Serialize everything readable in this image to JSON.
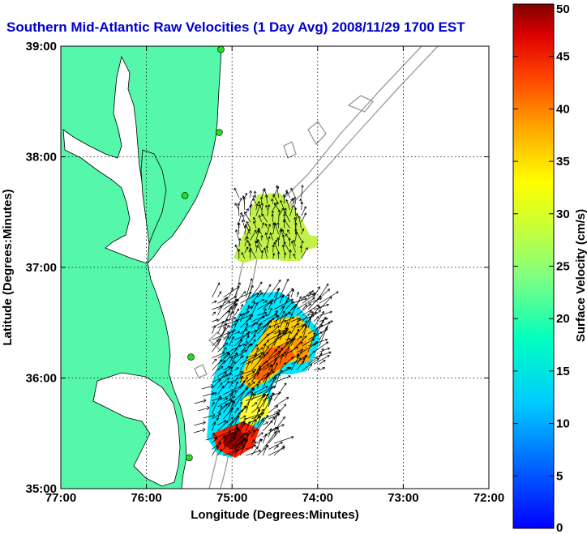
{
  "chart_data": {
    "type": "heatmap",
    "title": "Southern Mid-Atlantic Raw Velocities (1 Day Avg) 2008/11/29 1700 EST",
    "xlabel": "Longitude (Degrees:Minutes)",
    "ylabel": "Latitude (Degrees:Minutes)",
    "colorbar_label": "Surface Velocity (cm/s)",
    "xlim": [
      -77,
      -72
    ],
    "ylim": [
      35,
      39
    ],
    "xticks": [
      {
        "value": -77,
        "label": "77:00"
      },
      {
        "value": -76,
        "label": "76:00"
      },
      {
        "value": -75,
        "label": "75:00"
      },
      {
        "value": -74,
        "label": "74:00"
      },
      {
        "value": -73,
        "label": "73:00"
      },
      {
        "value": -72,
        "label": "72:00"
      }
    ],
    "yticks": [
      {
        "value": 35,
        "label": "35:00"
      },
      {
        "value": 36,
        "label": "36:00"
      },
      {
        "value": 37,
        "label": "37:00"
      },
      {
        "value": 38,
        "label": "38:00"
      },
      {
        "value": 39,
        "label": "39:00"
      }
    ],
    "colorbar": {
      "min": 0,
      "max": 50,
      "ticks": [
        0,
        5,
        10,
        15,
        20,
        25,
        30,
        35,
        40,
        45,
        50
      ]
    },
    "grid": true,
    "colors": {
      "land": "#55f7aa",
      "water": "#ffffff",
      "bathymetry": "#999999",
      "arrows": "#000000",
      "title": "#0000cc",
      "station": "#22dd22"
    },
    "stations": [
      {
        "lon": -75.13,
        "lat": 38.97
      },
      {
        "lon": -75.15,
        "lat": 38.22
      },
      {
        "lon": -75.55,
        "lat": 37.65
      },
      {
        "lon": -75.48,
        "lat": 36.19
      },
      {
        "lon": -75.5,
        "lat": 35.28
      }
    ],
    "velocity_regions": [
      {
        "name": "northern patch",
        "lat_range": [
          36.97,
          37.65
        ],
        "lon_range": [
          -75.05,
          -74.15
        ],
        "speed_cm_s": [
          18,
          28
        ]
      },
      {
        "name": "southern patch",
        "lat_range": [
          35.3,
          36.75
        ],
        "lon_range": [
          -75.3,
          -73.9
        ],
        "speed_cm_s": [
          5,
          50
        ]
      }
    ]
  }
}
